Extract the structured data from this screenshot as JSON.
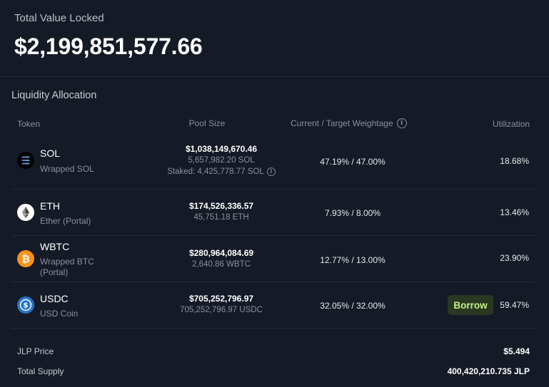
{
  "tvl": {
    "label": "Total Value Locked",
    "value": "$2,199,851,577.66"
  },
  "allocation": {
    "title": "Liquidity Allocation",
    "headers": {
      "token": "Token",
      "pool_size": "Pool Size",
      "weightage": "Current / Target Weightage",
      "utilization": "Utilization"
    },
    "rows": [
      {
        "symbol": "SOL",
        "name": "Wrapped SOL",
        "pool_usd": "$1,038,149,670.46",
        "pool_amount": "5,657,982.20 SOL",
        "staked": "Staked: 4,425,778.77 SOL",
        "weightage": "47.19% / 47.00%",
        "utilization": "18.68%"
      },
      {
        "symbol": "ETH",
        "name": "Ether (Portal)",
        "pool_usd": "$174,526,336.57",
        "pool_amount": "45,751.18 ETH",
        "weightage": "7.93% / 8.00%",
        "utilization": "13.46%"
      },
      {
        "symbol": "WBTC",
        "name_line1": "Wrapped BTC",
        "name_line2": "(Portal)",
        "pool_usd": "$280,964,084.69",
        "pool_amount": "2,640.86 WBTC",
        "weightage": "12.77% / 13.00%",
        "utilization": "23.90%"
      },
      {
        "symbol": "USDC",
        "name": "USD Coin",
        "pool_usd": "$705,252,796.97",
        "pool_amount": "705,252,796.97 USDC",
        "weightage": "32.05% / 32.00%",
        "utilization": "59.47%",
        "borrow_label": "Borrow"
      }
    ]
  },
  "footer": {
    "jlp_price_label": "JLP Price",
    "jlp_price": "$5.494",
    "total_supply_label": "Total Supply",
    "total_supply": "400,420,210.735 JLP"
  },
  "icons": {
    "sol": "solana-icon",
    "eth": "ethereum-icon",
    "wbtc": "bitcoin-icon",
    "usdc": "usdc-icon",
    "info": "info-icon"
  },
  "colors": {
    "background": "#151b26",
    "borrow_bg": "#2a3822",
    "borrow_text": "#c7f284",
    "btc": "#f7931a",
    "usdc": "#2775ca"
  }
}
